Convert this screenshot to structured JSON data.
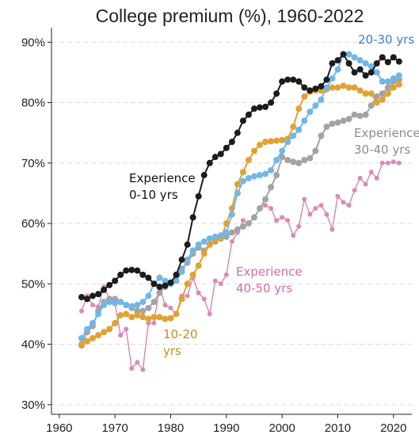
{
  "chart_data": {
    "type": "line",
    "title": "College premium (%), 1960-2022",
    "x": [
      1964,
      1965,
      1966,
      1967,
      1968,
      1969,
      1970,
      1971,
      1972,
      1973,
      1974,
      1975,
      1976,
      1977,
      1978,
      1979,
      1980,
      1981,
      1982,
      1983,
      1984,
      1985,
      1986,
      1987,
      1988,
      1989,
      1990,
      1991,
      1992,
      1993,
      1994,
      1995,
      1996,
      1997,
      1998,
      1999,
      2000,
      2001,
      2002,
      2003,
      2004,
      2005,
      2006,
      2007,
      2008,
      2009,
      2010,
      2011,
      2012,
      2013,
      2014,
      2015,
      2016,
      2017,
      2018,
      2019,
      2020,
      2021
    ],
    "series": [
      {
        "name": "Experience 40-50 yrs",
        "color": "#d98ab8",
        "values": [
          45.5,
          48,
          46.5,
          46.2,
          49.5,
          47.5,
          46.8,
          41.5,
          42.5,
          36,
          37,
          35.8,
          43.5,
          43.5,
          49.5,
          46.5,
          46,
          45,
          48,
          48,
          51,
          48.5,
          47.5,
          45,
          50.5,
          50,
          51.5,
          57,
          58.5,
          60.5,
          60,
          61,
          62.5,
          63,
          62.5,
          60.5,
          61,
          60.5,
          58,
          59.5,
          64,
          61.5,
          62.5,
          63,
          61.5,
          59,
          64.5,
          63.5,
          63,
          65.5,
          67.5,
          66.5,
          68.5,
          67.5,
          70,
          70,
          70.2,
          70
        ]
      },
      {
        "name": "Experience 30-40 yrs",
        "color": "#a3a3a3",
        "values": [
          39.8,
          42,
          43,
          45.5,
          47,
          47.5,
          47.5,
          47,
          46.5,
          46,
          45.5,
          45.5,
          46,
          47,
          48.5,
          49.5,
          50,
          51.5,
          52.5,
          53.5,
          55,
          56,
          55.5,
          56.5,
          57,
          57.5,
          57.8,
          58.5,
          59,
          59.5,
          60,
          61,
          62.5,
          64,
          66,
          68,
          71,
          70.5,
          70.2,
          70,
          70.5,
          70.8,
          72,
          74.5,
          76,
          76.5,
          76.7,
          77,
          77.3,
          78,
          77.8,
          78,
          79.5,
          81,
          81.5,
          82.5,
          83.5,
          83.8
        ]
      },
      {
        "name": "10-20 yrs",
        "color": "#e0a232",
        "values": [
          40,
          40.5,
          41,
          41.5,
          42,
          42.5,
          43.5,
          44.8,
          45,
          44.5,
          44.8,
          44.5,
          44.2,
          44.5,
          44.5,
          44.2,
          44.3,
          45,
          47.5,
          50,
          51.5,
          53,
          55,
          56.5,
          57.3,
          57.5,
          60,
          62.5,
          66.5,
          68.5,
          70.5,
          72,
          73,
          73.5,
          73.6,
          73.7,
          73.8,
          74,
          76,
          79,
          81,
          81.8,
          82,
          82,
          82.2,
          82.5,
          82.5,
          82.8,
          82.5,
          82.5,
          82,
          81.5,
          81.5,
          80,
          80.5,
          81.5,
          82.5,
          83
        ]
      },
      {
        "name": "20-30 yrs",
        "color": "#72b6e6",
        "values": [
          41,
          42.5,
          43.5,
          45,
          46.5,
          47,
          46.8,
          47,
          46.5,
          46.3,
          46.5,
          47,
          48,
          50,
          51,
          50.5,
          50,
          50.5,
          52,
          54,
          55.5,
          56.5,
          57,
          57.5,
          57.8,
          58,
          58.5,
          61.5,
          65,
          67,
          67.5,
          67.8,
          68,
          68.2,
          68.8,
          70.5,
          72,
          73.5,
          74.5,
          75.5,
          77,
          78.5,
          79.5,
          80.5,
          82.5,
          84,
          85.5,
          88,
          88,
          87.5,
          87,
          86.5,
          86,
          85,
          83.5,
          83.5,
          84,
          84.5
        ]
      },
      {
        "name": "Experience 0-10 yrs",
        "color": "#1c1c1c",
        "values": [
          47.8,
          47.5,
          48,
          48.3,
          49,
          49.8,
          50.5,
          51.5,
          52.2,
          52.3,
          52.2,
          51.5,
          51,
          50,
          49.5,
          49.7,
          50.2,
          51.5,
          54,
          56.5,
          61,
          64.5,
          68,
          70,
          71,
          71.5,
          72.5,
          73.5,
          75,
          77,
          78,
          79,
          79.2,
          79.3,
          80,
          81.5,
          83.5,
          83.8,
          83.8,
          83.5,
          82.5,
          82,
          82.3,
          82.7,
          83.8,
          86.5,
          87,
          88,
          86.5,
          85,
          85.5,
          84.5,
          85,
          86.5,
          87.5,
          86.7,
          87.5,
          86.8
        ]
      }
    ],
    "xlim": [
      1958.6,
      2023.3
    ],
    "xticks": [
      1960,
      1970,
      1980,
      1990,
      2000,
      2010,
      2020
    ],
    "ylim": [
      28.4,
      92.4
    ],
    "yticks": [
      {
        "value": 30,
        "label": "30%"
      },
      {
        "value": 40,
        "label": "40%"
      },
      {
        "value": 50,
        "label": "50%"
      },
      {
        "value": 60,
        "label": "60%"
      },
      {
        "value": 70,
        "label": "70%"
      },
      {
        "value": 80,
        "label": "80%"
      },
      {
        "value": 90,
        "label": "90%"
      }
    ],
    "grid": true
  }
}
